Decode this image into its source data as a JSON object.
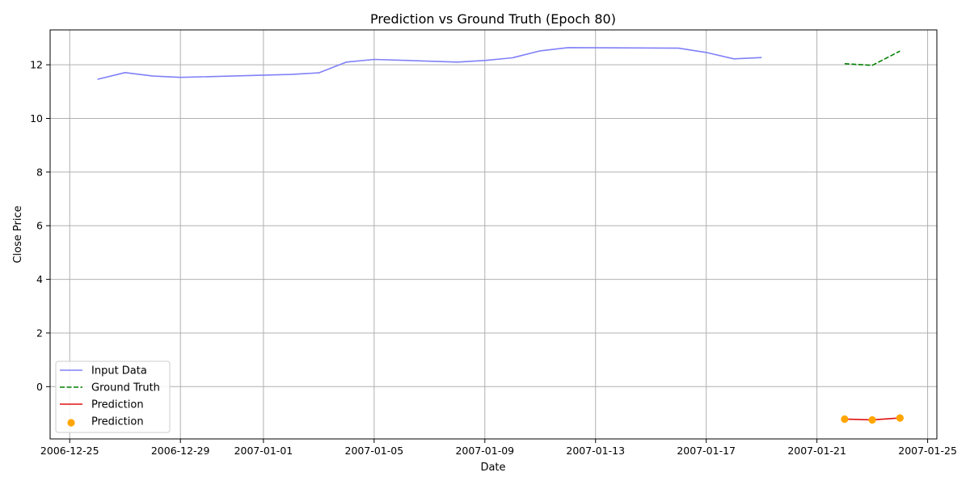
{
  "chart_data": {
    "type": "line",
    "title": "Prediction vs Ground Truth (Epoch 80)",
    "xlabel": "Date",
    "ylabel": "Close Price",
    "xlim": [
      "2006-12-24T07:00",
      "2007-01-25T08:00"
    ],
    "ylim": [
      -1.95,
      13.3
    ],
    "x_ticks": [
      "2006-12-25",
      "2006-12-29",
      "2007-01-01",
      "2007-01-05",
      "2007-01-09",
      "2007-01-13",
      "2007-01-17",
      "2007-01-21",
      "2007-01-25"
    ],
    "x_tick_labels": [
      "2006-12-25",
      "2006-12-29",
      "2007-01-01",
      "2007-01-05",
      "2007-01-09",
      "2007-01-13",
      "2007-01-17",
      "2007-01-21",
      "2007-01-25"
    ],
    "y_ticks": [
      0,
      2,
      4,
      6,
      8,
      10,
      12
    ],
    "y_tick_labels": [
      "0",
      "2",
      "4",
      "6",
      "8",
      "10",
      "12"
    ],
    "grid": true,
    "legend_position": "lower-left",
    "series": [
      {
        "name": "Input Data",
        "kind": "line",
        "color": "#8080f8",
        "dash": "solid",
        "x": [
          "2006-12-26",
          "2006-12-27",
          "2006-12-28",
          "2006-12-29",
          "2007-01-02",
          "2007-01-03",
          "2007-01-04",
          "2007-01-05",
          "2007-01-08",
          "2007-01-09",
          "2007-01-10",
          "2007-01-11",
          "2007-01-12",
          "2007-01-16",
          "2007-01-17",
          "2007-01-18",
          "2007-01-19"
        ],
        "y": [
          11.46,
          11.71,
          11.58,
          11.53,
          11.64,
          11.7,
          12.1,
          12.2,
          12.1,
          12.16,
          12.26,
          12.52,
          12.64,
          12.62,
          12.46,
          12.22,
          12.27
        ]
      },
      {
        "name": "Ground Truth",
        "kind": "line",
        "color": "#008000",
        "dash": "dashed",
        "x": [
          "2007-01-22",
          "2007-01-23",
          "2007-01-24"
        ],
        "y": [
          12.04,
          11.98,
          12.51
        ]
      },
      {
        "name": "Prediction",
        "kind": "line",
        "color": "#e01010",
        "dash": "solid",
        "x": [
          "2007-01-22",
          "2007-01-23",
          "2007-01-24"
        ],
        "y": [
          -1.21,
          -1.24,
          -1.17
        ]
      },
      {
        "name": "Prediction",
        "kind": "scatter",
        "color": "#ffa500",
        "x": [
          "2007-01-22",
          "2007-01-23",
          "2007-01-24"
        ],
        "y": [
          -1.21,
          -1.24,
          -1.17
        ]
      }
    ]
  }
}
